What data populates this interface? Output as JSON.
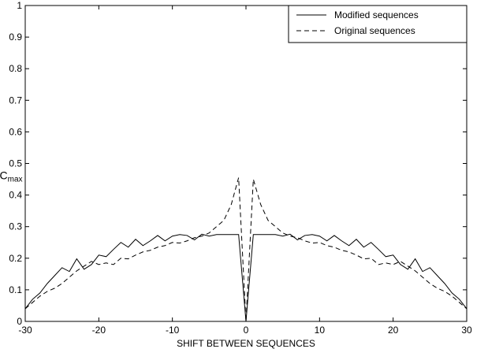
{
  "chart_data": {
    "type": "line",
    "xlabel": "SHIFT BETWEEN SEQUENCES",
    "ylabel_main": "C",
    "ylabel_sub": "max",
    "xlim": [
      -30,
      30
    ],
    "ylim": [
      0,
      1
    ],
    "xticks": [
      -30,
      -20,
      -10,
      0,
      10,
      20,
      30
    ],
    "yticks": [
      0,
      0.1,
      0.2,
      0.3,
      0.4,
      0.5,
      0.6,
      0.7,
      0.8,
      0.9,
      1
    ],
    "grid": false,
    "legend_position": "top-right",
    "series": [
      {
        "name": "Modified sequences",
        "style": "solid",
        "color": "#000000",
        "x": [
          -30,
          -29,
          -28,
          -27,
          -26,
          -25,
          -24,
          -23,
          -22,
          -21,
          -20,
          -19,
          -18,
          -17,
          -16,
          -15,
          -14,
          -13,
          -12,
          -11,
          -10,
          -9,
          -8,
          -7,
          -6,
          -5,
          -4,
          -3,
          -2,
          -1,
          0,
          1,
          2,
          3,
          4,
          5,
          6,
          7,
          8,
          9,
          10,
          11,
          12,
          13,
          14,
          15,
          16,
          17,
          18,
          19,
          20,
          21,
          22,
          23,
          24,
          25,
          26,
          27,
          28,
          29,
          30
        ],
        "values": [
          0.04,
          0.07,
          0.09,
          0.12,
          0.145,
          0.17,
          0.158,
          0.198,
          0.165,
          0.18,
          0.21,
          0.205,
          0.228,
          0.25,
          0.235,
          0.26,
          0.24,
          0.255,
          0.272,
          0.255,
          0.27,
          0.275,
          0.272,
          0.258,
          0.276,
          0.27,
          0.275,
          0.275,
          0.275,
          0.275,
          0.0,
          0.275,
          0.275,
          0.275,
          0.275,
          0.27,
          0.276,
          0.258,
          0.272,
          0.275,
          0.27,
          0.255,
          0.272,
          0.255,
          0.24,
          0.26,
          0.235,
          0.25,
          0.228,
          0.205,
          0.21,
          0.18,
          0.165,
          0.198,
          0.158,
          0.17,
          0.145,
          0.12,
          0.09,
          0.07,
          0.04
        ]
      },
      {
        "name": "Original sequences",
        "style": "dashed",
        "color": "#000000",
        "x": [
          -30,
          -29,
          -28,
          -27,
          -26,
          -25,
          -24,
          -23,
          -22,
          -21,
          -20,
          -19,
          -18,
          -17,
          -16,
          -15,
          -14,
          -13,
          -12,
          -11,
          -10,
          -9,
          -8,
          -7,
          -6,
          -5,
          -4,
          -3,
          -2,
          -1,
          0,
          1,
          2,
          3,
          4,
          5,
          6,
          7,
          8,
          9,
          10,
          11,
          12,
          13,
          14,
          15,
          16,
          17,
          18,
          19,
          20,
          21,
          22,
          23,
          24,
          25,
          26,
          27,
          28,
          29,
          30
        ],
        "values": [
          0.04,
          0.06,
          0.08,
          0.095,
          0.105,
          0.12,
          0.14,
          0.16,
          0.175,
          0.19,
          0.18,
          0.185,
          0.18,
          0.2,
          0.198,
          0.21,
          0.22,
          0.225,
          0.235,
          0.24,
          0.25,
          0.248,
          0.255,
          0.265,
          0.27,
          0.28,
          0.3,
          0.32,
          0.37,
          0.455,
          0.0,
          0.45,
          0.37,
          0.32,
          0.3,
          0.28,
          0.27,
          0.265,
          0.255,
          0.248,
          0.25,
          0.24,
          0.235,
          0.225,
          0.22,
          0.21,
          0.198,
          0.2,
          0.18,
          0.185,
          0.18,
          0.19,
          0.175,
          0.16,
          0.14,
          0.12,
          0.105,
          0.095,
          0.08,
          0.06,
          0.04
        ]
      }
    ]
  }
}
